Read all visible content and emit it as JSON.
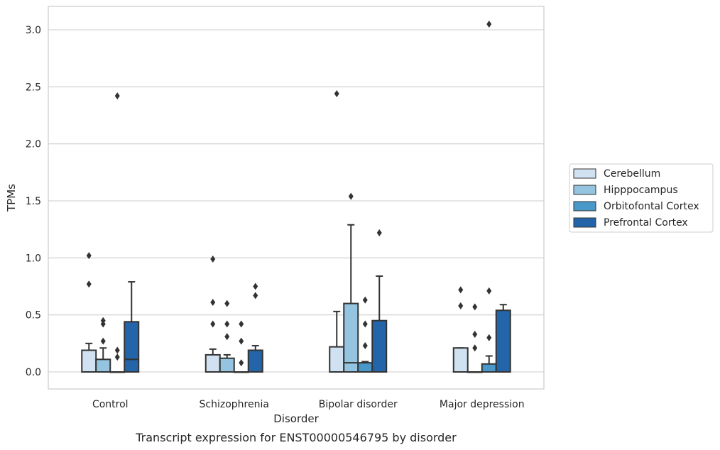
{
  "chart_data": {
    "type": "box",
    "title": "",
    "caption": "Transcript expression for ENST00000546795 by disorder",
    "xlabel": "Disorder",
    "ylabel": "TPMs",
    "ylim": [
      -0.15,
      3.2
    ],
    "yticks": [
      0.0,
      0.5,
      1.0,
      1.5,
      2.0,
      2.5,
      3.0
    ],
    "ytick_labels": [
      "0.0",
      "0.5",
      "1.0",
      "1.5",
      "2.0",
      "2.5",
      "3.0"
    ],
    "grid": "horizontal",
    "legend_position": "right",
    "categories": [
      "Control",
      "Schizophrenia",
      "Bipolar disorder",
      "Major depression"
    ],
    "series": [
      {
        "name": "Cerebellum",
        "color": "#d0e1f2",
        "boxes": [
          {
            "q1": 0.0,
            "median": 0.0,
            "q3": 0.19,
            "whisker_low": 0.0,
            "whisker_high": 0.25,
            "outliers": [
              1.02,
              0.77
            ]
          },
          {
            "q1": 0.0,
            "median": 0.0,
            "q3": 0.15,
            "whisker_low": 0.0,
            "whisker_high": 0.2,
            "outliers": [
              0.99,
              0.61,
              0.42
            ]
          },
          {
            "q1": 0.0,
            "median": 0.0,
            "q3": 0.22,
            "whisker_low": 0.0,
            "whisker_high": 0.53,
            "outliers": [
              2.44
            ]
          },
          {
            "q1": 0.0,
            "median": 0.0,
            "q3": 0.21,
            "whisker_low": 0.0,
            "whisker_high": 0.21,
            "outliers": [
              0.72,
              0.58
            ]
          }
        ]
      },
      {
        "name": "Hipppocampus",
        "color": "#94c4df",
        "boxes": [
          {
            "q1": 0.0,
            "median": 0.0,
            "q3": 0.11,
            "whisker_low": 0.0,
            "whisker_high": 0.21,
            "outliers": [
              0.45,
              0.42,
              0.27
            ]
          },
          {
            "q1": 0.0,
            "median": 0.0,
            "q3": 0.12,
            "whisker_low": 0.0,
            "whisker_high": 0.15,
            "outliers": [
              0.6,
              0.42,
              0.31
            ]
          },
          {
            "q1": 0.0,
            "median": 0.08,
            "q3": 0.6,
            "whisker_low": 0.0,
            "whisker_high": 1.29,
            "outliers": [
              1.54
            ]
          },
          {
            "q1": 0.0,
            "median": 0.0,
            "q3": 0.0,
            "whisker_low": 0.0,
            "whisker_high": 0.0,
            "outliers": [
              0.57,
              0.33,
              0.21
            ]
          }
        ]
      },
      {
        "name": "Orbitofontal Cortex",
        "color": "#4a98c9",
        "boxes": [
          {
            "q1": 0.0,
            "median": 0.0,
            "q3": 0.0,
            "whisker_low": 0.0,
            "whisker_high": 0.0,
            "outliers": [
              2.42,
              0.19,
              0.13
            ]
          },
          {
            "q1": 0.0,
            "median": 0.0,
            "q3": 0.0,
            "whisker_low": 0.0,
            "whisker_high": 0.0,
            "outliers": [
              0.42,
              0.27,
              0.08
            ]
          },
          {
            "q1": 0.0,
            "median": 0.0,
            "q3": 0.08,
            "whisker_low": 0.0,
            "whisker_high": 0.09,
            "outliers": [
              0.63,
              0.42,
              0.23
            ]
          },
          {
            "q1": 0.0,
            "median": 0.0,
            "q3": 0.07,
            "whisker_low": 0.0,
            "whisker_high": 0.14,
            "outliers": [
              3.05,
              0.71,
              0.3
            ]
          }
        ]
      },
      {
        "name": "Prefrontal Cortex",
        "color": "#2464a8",
        "boxes": [
          {
            "q1": 0.0,
            "median": 0.11,
            "q3": 0.44,
            "whisker_low": 0.0,
            "whisker_high": 0.79,
            "outliers": []
          },
          {
            "q1": 0.0,
            "median": 0.0,
            "q3": 0.19,
            "whisker_low": 0.0,
            "whisker_high": 0.23,
            "outliers": [
              0.75,
              0.67
            ]
          },
          {
            "q1": 0.0,
            "median": 0.0,
            "q3": 0.45,
            "whisker_low": 0.0,
            "whisker_high": 0.84,
            "outliers": [
              1.22
            ]
          },
          {
            "q1": 0.0,
            "median": 0.0,
            "q3": 0.54,
            "whisker_low": 0.0,
            "whisker_high": 0.59,
            "outliers": []
          }
        ]
      }
    ],
    "colors": {
      "edge": "#333333",
      "grid": "#cccccc",
      "frame": "#cccccc",
      "outlier": "#333333"
    }
  }
}
